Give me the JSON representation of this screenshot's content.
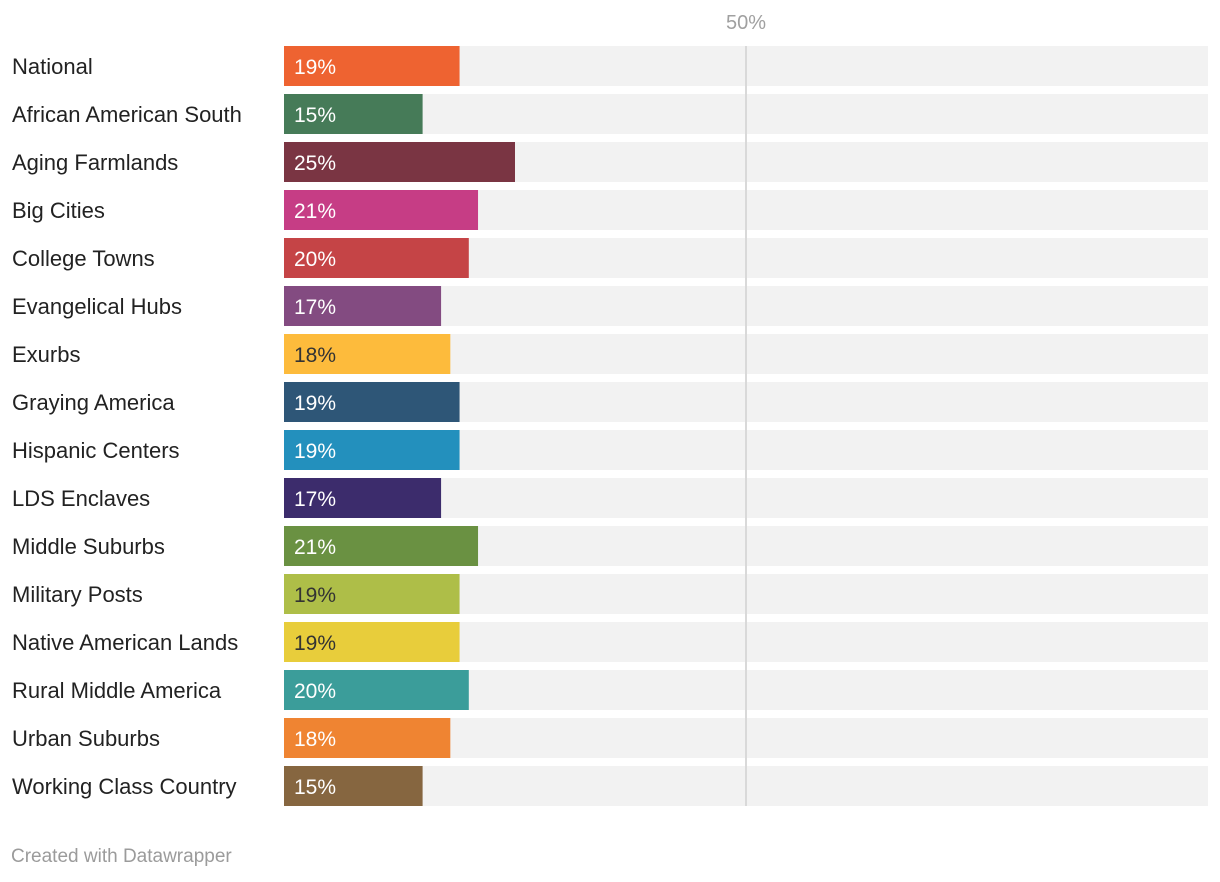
{
  "chart_data": {
    "type": "bar",
    "orientation": "horizontal",
    "categories": [
      "National",
      "African American South",
      "Aging Farmlands",
      "Big Cities",
      "College Towns",
      "Evangelical Hubs",
      "Exurbs",
      "Graying America",
      "Hispanic Centers",
      "LDS Enclaves",
      "Middle Suburbs",
      "Military Posts",
      "Native American Lands",
      "Rural Middle America",
      "Urban Suburbs",
      "Working Class Country"
    ],
    "values": [
      19,
      15,
      25,
      21,
      20,
      17,
      18,
      19,
      19,
      17,
      21,
      19,
      19,
      20,
      18,
      15
    ],
    "value_labels": [
      "19%",
      "15%",
      "25%",
      "21%",
      "20%",
      "17%",
      "18%",
      "19%",
      "19%",
      "17%",
      "21%",
      "19%",
      "19%",
      "20%",
      "18%",
      "15%"
    ],
    "colors": [
      "#ee6331",
      "#467b58",
      "#7a3543",
      "#c63d85",
      "#c54446",
      "#834b81",
      "#fdbb3c",
      "#2e5677",
      "#2390bd",
      "#3c2c6c",
      "#6a9142",
      "#aebe48",
      "#e8cd3b",
      "#3b9d9a",
      "#ef8432",
      "#866640"
    ],
    "label_colors": [
      "#ffffff",
      "#ffffff",
      "#ffffff",
      "#ffffff",
      "#ffffff",
      "#ffffff",
      "#333333",
      "#ffffff",
      "#ffffff",
      "#ffffff",
      "#ffffff",
      "#333333",
      "#333333",
      "#ffffff",
      "#ffffff",
      "#ffffff"
    ],
    "xlim": [
      0,
      100
    ],
    "reference_line": {
      "value": 50,
      "label": "50%"
    },
    "track_color": "#f2f2f2",
    "title": "",
    "xlabel": "",
    "ylabel": ""
  },
  "footer": {
    "credit": "Created with Datawrapper"
  }
}
